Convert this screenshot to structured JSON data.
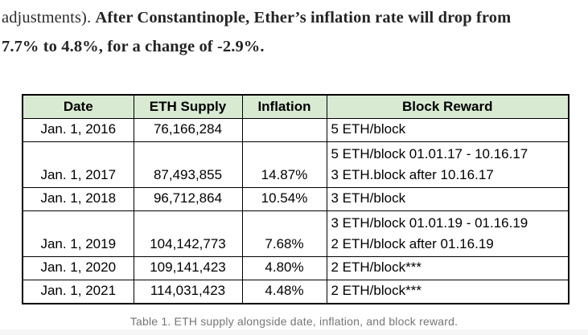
{
  "paragraph": {
    "line1_regular": "adjustments). ",
    "line1_bold": "After Constantinople, Ether’s inflation rate will drop from",
    "line2_bold": "7.7% to 4.8%, for a change of -2.9%."
  },
  "table": {
    "headers": [
      "Date",
      "ETH Supply",
      "Inflation",
      "Block Reward"
    ],
    "rows": [
      {
        "date": "Jan. 1, 2016",
        "supply": "76,166,284",
        "inflation": "",
        "reward": [
          "5 ETH/block"
        ]
      },
      {
        "date": "Jan. 1, 2017",
        "supply": "87,493,855",
        "inflation": "14.87%",
        "reward": [
          "5 ETH/block 01.01.17 - 10.16.17",
          "3 ETH.block after 10.16.17"
        ]
      },
      {
        "date": "Jan. 1, 2018",
        "supply": "96,712,864",
        "inflation": "10.54%",
        "reward": [
          "3 ETH/block"
        ]
      },
      {
        "date": "Jan. 1, 2019",
        "supply": "104,142,773",
        "inflation": "7.68%",
        "reward": [
          "3 ETH/block 01.01.19 - 01.16.19",
          "2 ETH/block after 01.16.19"
        ]
      },
      {
        "date": "Jan. 1, 2020",
        "supply": "109,141,423",
        "inflation": "4.80%",
        "reward": [
          "2 ETH/block***"
        ]
      },
      {
        "date": "Jan. 1, 2021",
        "supply": "114,031,423",
        "inflation": "4.48%",
        "reward": [
          "2 ETH/block***"
        ]
      }
    ]
  },
  "caption": "Table 1. ETH supply alongside date, inflation, and block reward.",
  "colors": {
    "header_bg": "#d9ead3",
    "border": "#000000",
    "body_text": "#2b2b2b",
    "caption_text": "#767676"
  }
}
